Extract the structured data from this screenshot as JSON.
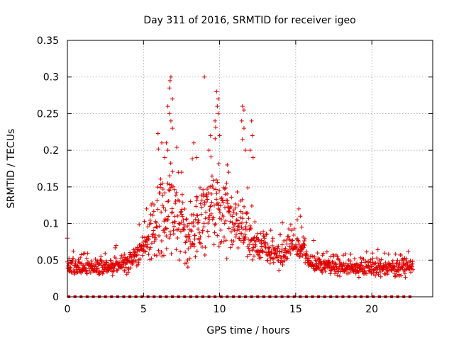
{
  "chart_data": {
    "type": "scatter",
    "title": "Day 311 of 2016, SRMTID for receiver igeo",
    "xlabel": "GPS time / hours",
    "ylabel": "SRMTID / TECUs",
    "xlim": [
      0,
      24
    ],
    "ylim": [
      0,
      0.35
    ],
    "x_ticks": [
      "0",
      "5",
      "10",
      "15",
      "20"
    ],
    "x_tick_values": [
      0,
      5,
      10,
      15,
      20
    ],
    "y_ticks": [
      "0",
      "0.05",
      "0.1",
      "0.15",
      "0.2",
      "0.25",
      "0.3",
      "0.35"
    ],
    "y_tick_values": [
      0,
      0.05,
      0.1,
      0.15,
      0.2,
      0.25,
      0.3,
      0.35
    ],
    "grid": true,
    "marker": "+",
    "color": "#e00000",
    "series": [
      {
        "name": "SRMTID",
        "profile": {
          "hours": [
            0,
            1,
            2,
            3,
            4,
            5,
            6,
            7,
            8,
            9,
            10,
            11,
            12,
            13,
            14,
            15,
            16,
            17,
            18,
            19,
            20,
            21,
            22,
            22.7
          ],
          "median": [
            0.04,
            0.04,
            0.04,
            0.04,
            0.045,
            0.065,
            0.11,
            0.12,
            0.08,
            0.12,
            0.12,
            0.1,
            0.08,
            0.065,
            0.055,
            0.075,
            0.045,
            0.045,
            0.04,
            0.04,
            0.04,
            0.04,
            0.04,
            0.04
          ],
          "spread": [
            0.015,
            0.015,
            0.015,
            0.015,
            0.018,
            0.03,
            0.07,
            0.08,
            0.05,
            0.07,
            0.07,
            0.06,
            0.04,
            0.025,
            0.02,
            0.03,
            0.015,
            0.015,
            0.015,
            0.015,
            0.015,
            0.015,
            0.015,
            0.015
          ]
        },
        "peaks": [
          {
            "x": 6.8,
            "y": 0.3
          },
          {
            "x": 6.75,
            "y": 0.295
          },
          {
            "x": 6.7,
            "y": 0.285
          },
          {
            "x": 6.9,
            "y": 0.27
          },
          {
            "x": 6.6,
            "y": 0.26
          },
          {
            "x": 6.7,
            "y": 0.25
          },
          {
            "x": 6.8,
            "y": 0.24
          },
          {
            "x": 6.9,
            "y": 0.23
          },
          {
            "x": 6.5,
            "y": 0.21
          },
          {
            "x": 6.6,
            "y": 0.2
          },
          {
            "x": 6.2,
            "y": 0.21
          },
          {
            "x": 6.4,
            "y": 0.19
          },
          {
            "x": 9.0,
            "y": 0.3
          },
          {
            "x": 9.8,
            "y": 0.28
          },
          {
            "x": 9.9,
            "y": 0.27
          },
          {
            "x": 9.85,
            "y": 0.26
          },
          {
            "x": 9.9,
            "y": 0.25
          },
          {
            "x": 9.7,
            "y": 0.24
          },
          {
            "x": 10.0,
            "y": 0.22
          },
          {
            "x": 9.4,
            "y": 0.22
          },
          {
            "x": 9.3,
            "y": 0.2
          },
          {
            "x": 8.3,
            "y": 0.21
          },
          {
            "x": 8.5,
            "y": 0.19
          },
          {
            "x": 7.5,
            "y": 0.17
          },
          {
            "x": 11.5,
            "y": 0.26
          },
          {
            "x": 11.6,
            "y": 0.255
          },
          {
            "x": 11.45,
            "y": 0.24
          },
          {
            "x": 11.6,
            "y": 0.23
          },
          {
            "x": 11.5,
            "y": 0.215
          },
          {
            "x": 11.7,
            "y": 0.2
          },
          {
            "x": 12.1,
            "y": 0.24
          },
          {
            "x": 12.15,
            "y": 0.22
          },
          {
            "x": 12.0,
            "y": 0.2
          },
          {
            "x": 12.2,
            "y": 0.19
          },
          {
            "x": 10.5,
            "y": 0.18
          },
          {
            "x": 10.6,
            "y": 0.17
          },
          {
            "x": 5.2,
            "y": 0.12
          },
          {
            "x": 0.0,
            "y": 0.08
          },
          {
            "x": 15.2,
            "y": 0.12
          },
          {
            "x": 15.3,
            "y": 0.11
          },
          {
            "x": 15.1,
            "y": 0.105
          },
          {
            "x": 15.4,
            "y": 0.095
          }
        ]
      },
      {
        "name": "zero-baseline",
        "x_start": 0.1,
        "x_step": 0.4,
        "x_end": 22.6,
        "y": 0
      }
    ]
  }
}
